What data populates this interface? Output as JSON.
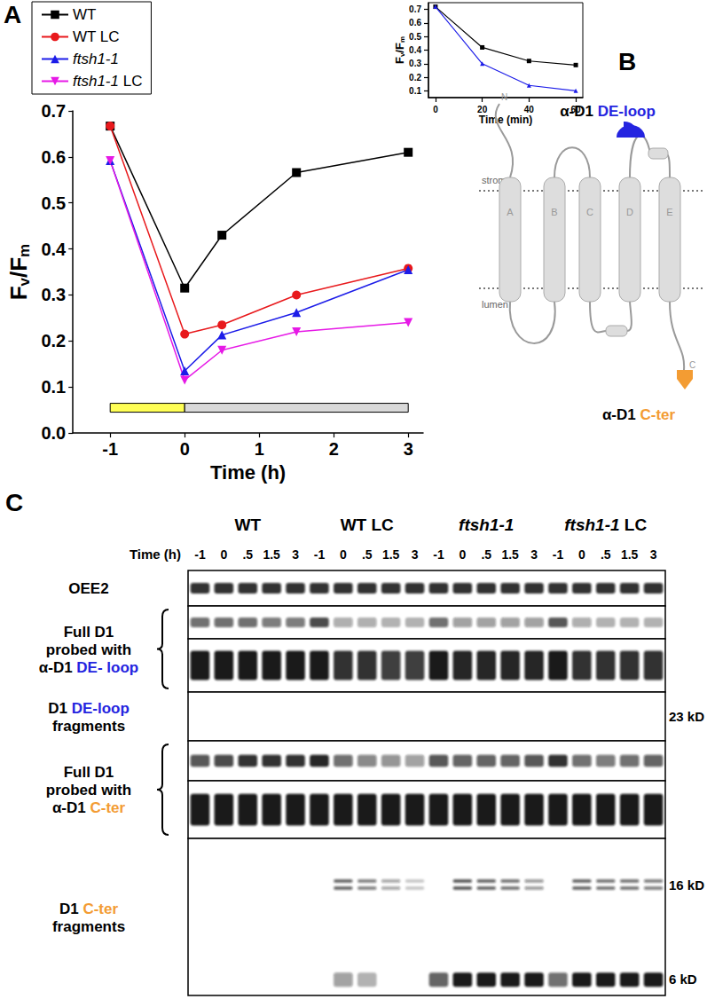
{
  "chart_data": [
    {
      "type": "line",
      "label": "A",
      "x": [
        -1,
        0,
        0.5,
        1.5,
        3
      ],
      "series": [
        {
          "name": "WT",
          "color": "#000000",
          "marker": "square",
          "values": [
            0.667,
            0.315,
            0.43,
            0.566,
            0.61
          ]
        },
        {
          "name": "WT LC",
          "color": "#e8191c",
          "marker": "circle",
          "values": [
            0.667,
            0.215,
            0.235,
            0.3,
            0.358
          ]
        },
        {
          "name": "ftsh1-1",
          "color": "#1c1ce8",
          "marker": "triangle-up",
          "values": [
            0.592,
            0.135,
            0.213,
            0.262,
            0.355
          ]
        },
        {
          "name": "ftsh1-1 LC",
          "color": "#e619e6",
          "marker": "triangle-down",
          "values": [
            0.592,
            0.115,
            0.18,
            0.22,
            0.24
          ]
        }
      ],
      "xlabel": "Time (h)",
      "ylabel": "Fv/Fm",
      "xlim": [
        -1.5,
        3.2
      ],
      "xticks": [
        -1,
        0,
        1,
        2,
        3
      ],
      "ylim": [
        0,
        0.7
      ],
      "yticks": [
        {
          "value": 0,
          "label": "0.0"
        },
        0.1,
        0.2,
        0.3,
        0.4,
        0.5,
        0.6,
        0.7
      ],
      "periods": [
        {
          "start": -1,
          "end": 0,
          "y": 0.055,
          "color": "#ffff55"
        },
        {
          "start": 0,
          "end": 3,
          "y": 0.055,
          "color": "#d9d9d9"
        }
      ],
      "legend": "upper left",
      "grid": false
    },
    {
      "type": "line",
      "x": [
        0,
        20,
        40,
        60
      ],
      "series": [
        {
          "color": "#000000",
          "marker": "square",
          "values": [
            0.72,
            0.42,
            0.32,
            0.29
          ]
        },
        {
          "color": "#1c1ce8",
          "marker": "triangle-up",
          "values": [
            0.72,
            0.3,
            0.14,
            0.1
          ]
        }
      ],
      "xlabel": "Time (min)",
      "ylabel": "Fv/Fm",
      "xlim": [
        -3,
        63
      ],
      "xticks": [
        0,
        20,
        40,
        60
      ],
      "ylim": [
        0.05,
        0.75
      ],
      "yticks": [
        0.1,
        0.2,
        0.3,
        0.4,
        0.5,
        0.6,
        0.7
      ],
      "grid": false
    }
  ],
  "diagram": {
    "label": "B",
    "antibodies": [
      {
        "text": "α-D1",
        "target": "DE-loop",
        "color": "#2424e0"
      },
      {
        "text": "α-D1",
        "target": "C-ter",
        "color": "#f39c33"
      }
    ],
    "helices": [
      "A",
      "B",
      "C",
      "D",
      "E"
    ],
    "termini": [
      "N",
      "C"
    ],
    "compartments": [
      "stroma",
      "lumen"
    ]
  },
  "blot": {
    "label": "C",
    "time_label": "Time (h)",
    "groups": [
      {
        "name": "WT",
        "times": [
          "-1",
          "0",
          ".5",
          "1.5",
          "3"
        ]
      },
      {
        "name": "WT LC",
        "times": [
          "-1",
          "0",
          ".5",
          "1.5",
          "3"
        ]
      },
      {
        "name": "ftsh1-1",
        "times": [
          "-1",
          "0",
          ".5",
          "1.5",
          "3"
        ]
      },
      {
        "name": "ftsh1-1 LC",
        "times": [
          "-1",
          "0",
          ".5",
          "1.5",
          "3"
        ]
      }
    ],
    "panels": [
      {
        "label": {
          "lines": [
            "OEE2"
          ]
        },
        "exposures": [
          {
            "bands": [
              {
                "intensity": [
                  0.85,
                  0.85,
                  0.85,
                  0.85,
                  0.85,
                  0.85,
                  0.85,
                  0.85,
                  0.85,
                  0.85,
                  0.85,
                  0.85,
                  0.85,
                  0.85,
                  0.85,
                  0.85,
                  0.85,
                  0.85,
                  0.85,
                  0.85
                ]
              }
            ]
          }
        ]
      },
      {
        "label": {
          "lines": [
            "Full D1",
            "probed with",
            "α-D1 DE- loop"
          ],
          "highlight": "DE- loop",
          "color": "#2424e0",
          "brace": true
        },
        "exposures": [
          {
            "bands": [
              {
                "intensity": [
                  0.6,
                  0.6,
                  0.6,
                  0.55,
                  0.55,
                  0.75,
                  0.35,
                  0.35,
                  0.3,
                  0.3,
                  0.6,
                  0.4,
                  0.4,
                  0.4,
                  0.4,
                  0.7,
                  0.35,
                  0.3,
                  0.3,
                  0.3
                ]
              }
            ]
          },
          {
            "bands": [
              {
                "intensity": [
                  0.95,
                  0.95,
                  0.95,
                  0.95,
                  0.95,
                  0.95,
                  0.85,
                  0.85,
                  0.8,
                  0.8,
                  0.95,
                  0.9,
                  0.9,
                  0.9,
                  0.9,
                  0.95,
                  0.85,
                  0.85,
                  0.85,
                  0.85
                ]
              }
            ]
          }
        ]
      },
      {
        "label": {
          "lines": [
            "D1 DE-loop",
            "fragments"
          ],
          "highlight": "DE-loop",
          "color": "#2424e0"
        },
        "exposures": [
          {
            "bands": [
              {
                "size": "23 kD",
                "intensity": [
                  0,
                  0,
                  0,
                  0,
                  0,
                  0,
                  0,
                  0,
                  0,
                  0,
                  0,
                  0,
                  0,
                  0,
                  0,
                  0,
                  0,
                  0,
                  0,
                  0
                ]
              }
            ]
          }
        ]
      },
      {
        "label": {
          "lines": [
            "Full D1",
            "probed with",
            "α-D1 C-ter"
          ],
          "highlight": "C-ter",
          "color": "#f39c33",
          "brace": true
        },
        "exposures": [
          {
            "bands": [
              {
                "intensity": [
                  0.7,
                  0.75,
                  0.85,
                  0.85,
                  0.85,
                  0.9,
                  0.6,
                  0.5,
                  0.45,
                  0.4,
                  0.7,
                  0.65,
                  0.65,
                  0.65,
                  0.7,
                  0.85,
                  0.6,
                  0.55,
                  0.6,
                  0.65
                ]
              }
            ]
          },
          {
            "bands": [
              {
                "intensity": [
                  0.95,
                  0.95,
                  0.95,
                  0.95,
                  0.95,
                  0.95,
                  0.95,
                  0.95,
                  0.95,
                  0.95,
                  0.95,
                  0.95,
                  0.95,
                  0.95,
                  0.95,
                  0.95,
                  0.95,
                  0.95,
                  0.95,
                  0.95
                ]
              }
            ]
          }
        ]
      },
      {
        "label": {
          "lines": [
            "D1 C-ter",
            "fragments"
          ],
          "highlight": "C-ter",
          "color": "#f39c33"
        },
        "exposures": [
          {
            "bands": [
              {
                "size": "16 kD",
                "doublet": true,
                "intensity": [
                  0,
                  0,
                  0,
                  0,
                  0,
                  0,
                  0.6,
                  0.5,
                  0.35,
                  0.2,
                  0,
                  0.65,
                  0.6,
                  0.55,
                  0.4,
                  0,
                  0.6,
                  0.55,
                  0.55,
                  0.5
                ]
              },
              {
                "size": "6 kD",
                "intensity": [
                  0,
                  0,
                  0,
                  0,
                  0,
                  0,
                  0.4,
                  0.3,
                  0,
                  0,
                  0.65,
                  0.95,
                  0.95,
                  0.95,
                  0.95,
                  0.6,
                  0.95,
                  0.95,
                  0.95,
                  0.95
                ]
              }
            ]
          }
        ]
      }
    ]
  }
}
